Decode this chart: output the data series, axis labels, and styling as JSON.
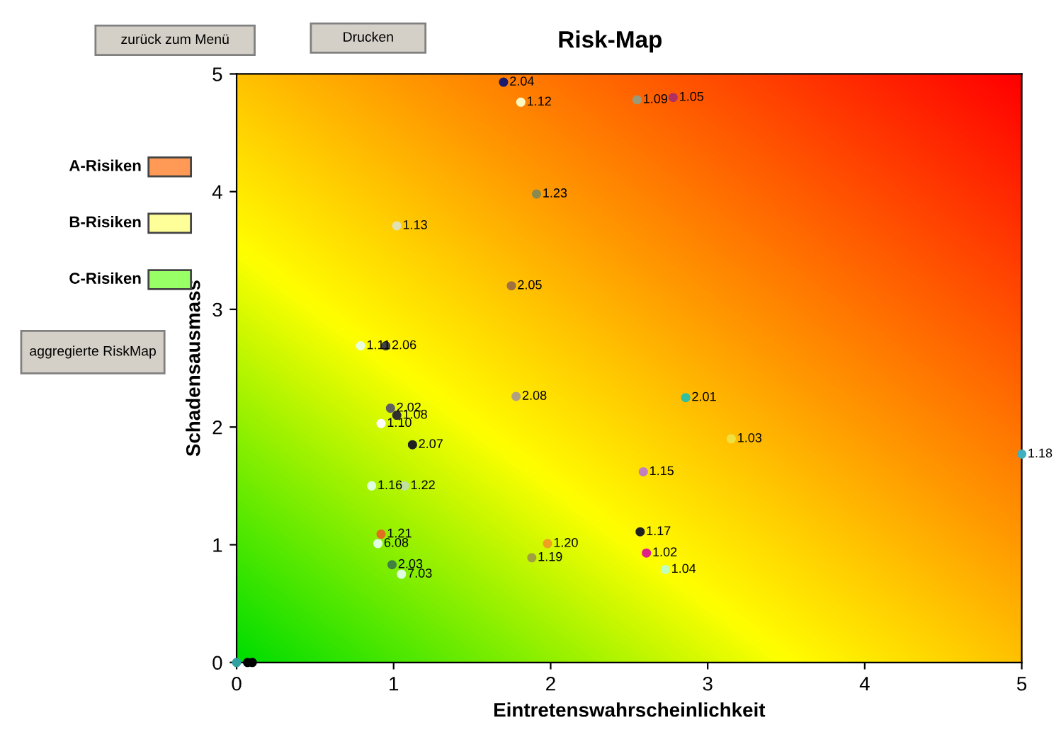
{
  "chart_data": {
    "type": "scatter",
    "title": "Risk-Map",
    "xlabel": "Eintretenswahrscheinlichkeit",
    "ylabel": "Schadensausmass",
    "xlim": [
      0,
      5
    ],
    "ylim": [
      0,
      5
    ],
    "xticks": [
      0,
      1,
      2,
      3,
      4,
      5
    ],
    "yticks": [
      0,
      1,
      2,
      3,
      4,
      5
    ],
    "grid": false,
    "marker": "circle",
    "x": [
      1.7,
      1.81,
      2.55,
      2.78,
      1.91,
      1.02,
      1.75,
      0.79,
      0.95,
      1.78,
      0.98,
      1.02,
      0.92,
      1.12,
      0.86,
      1.07,
      0.92,
      0.9,
      0.99,
      1.05,
      1.98,
      1.88,
      2.86,
      3.15,
      2.59,
      2.57,
      2.61,
      2.73,
      5.0,
      0.0,
      0.07,
      0.1
    ],
    "values": [
      4.93,
      4.76,
      4.78,
      4.8,
      3.98,
      3.71,
      3.2,
      2.69,
      2.69,
      2.26,
      2.16,
      2.1,
      2.03,
      1.85,
      1.5,
      1.5,
      1.09,
      1.01,
      0.83,
      0.75,
      1.01,
      0.89,
      2.25,
      1.9,
      1.62,
      1.11,
      0.93,
      0.79,
      1.77,
      0.0,
      0.0,
      0.0
    ],
    "colors": [
      "#1a1a6e",
      "#fff8c0",
      "#9a9a7a",
      "#b03060",
      "#8a8a50",
      "#e0e0b0",
      "#a07040",
      "#e8ffe0",
      "#404040",
      "#b0a080",
      "#606060",
      "#303030",
      "#ffffff",
      "#202020",
      "#e0ffe0",
      "#c0e0a0",
      "#e07020",
      "#e0ffe0",
      "#408040",
      "#e0ffe0",
      "#f0a020",
      "#a0a040",
      "#30c0a0",
      "#f0e040",
      "#c080c0",
      "#202020",
      "#e0208a",
      "#c0ffc0",
      "#40b0c0",
      "#30a0a0",
      "#000000",
      "#000000"
    ],
    "annotations": [
      {
        "text": "2.04",
        "x": 1.7,
        "y": 4.93
      },
      {
        "text": "1.12",
        "x": 1.81,
        "y": 4.76
      },
      {
        "text": "1.09",
        "x": 2.55,
        "y": 4.78
      },
      {
        "text": "1.05",
        "x": 2.78,
        "y": 4.8
      },
      {
        "text": "1.23",
        "x": 1.91,
        "y": 3.98
      },
      {
        "text": "1.13",
        "x": 1.02,
        "y": 3.71
      },
      {
        "text": "2.05",
        "x": 1.75,
        "y": 3.2
      },
      {
        "text": "1.11",
        "x": 0.79,
        "y": 2.69
      },
      {
        "text": "2.06",
        "x": 0.95,
        "y": 2.69
      },
      {
        "text": "2.08",
        "x": 1.78,
        "y": 2.26
      },
      {
        "text": "2.02",
        "x": 0.98,
        "y": 2.16
      },
      {
        "text": "1.08",
        "x": 1.02,
        "y": 2.1
      },
      {
        "text": "1.10",
        "x": 0.92,
        "y": 2.03
      },
      {
        "text": "2.07",
        "x": 1.12,
        "y": 1.85
      },
      {
        "text": "1.16",
        "x": 0.86,
        "y": 1.5
      },
      {
        "text": "1.22",
        "x": 1.07,
        "y": 1.5
      },
      {
        "text": "1.21",
        "x": 0.92,
        "y": 1.09
      },
      {
        "text": "6.08",
        "x": 0.9,
        "y": 1.01
      },
      {
        "text": "2.03",
        "x": 0.99,
        "y": 0.83
      },
      {
        "text": "7.03",
        "x": 1.05,
        "y": 0.75
      },
      {
        "text": "1.20",
        "x": 1.98,
        "y": 1.01
      },
      {
        "text": "1.19",
        "x": 1.88,
        "y": 0.89
      },
      {
        "text": "2.01",
        "x": 2.86,
        "y": 2.25
      },
      {
        "text": "1.03",
        "x": 3.15,
        "y": 1.9
      },
      {
        "text": "1.15",
        "x": 2.59,
        "y": 1.62
      },
      {
        "text": "1.17",
        "x": 2.57,
        "y": 1.11
      },
      {
        "text": "1.02",
        "x": 2.61,
        "y": 0.93
      },
      {
        "text": "1.04",
        "x": 2.73,
        "y": 0.79
      },
      {
        "text": "1.18",
        "x": 5.0,
        "y": 1.77
      },
      "A-Risiken",
      "B-Risiken",
      "C-Risiken",
      "zurück zum Menü",
      "Drucken",
      "aggregierte RiskMap"
    ]
  }
}
